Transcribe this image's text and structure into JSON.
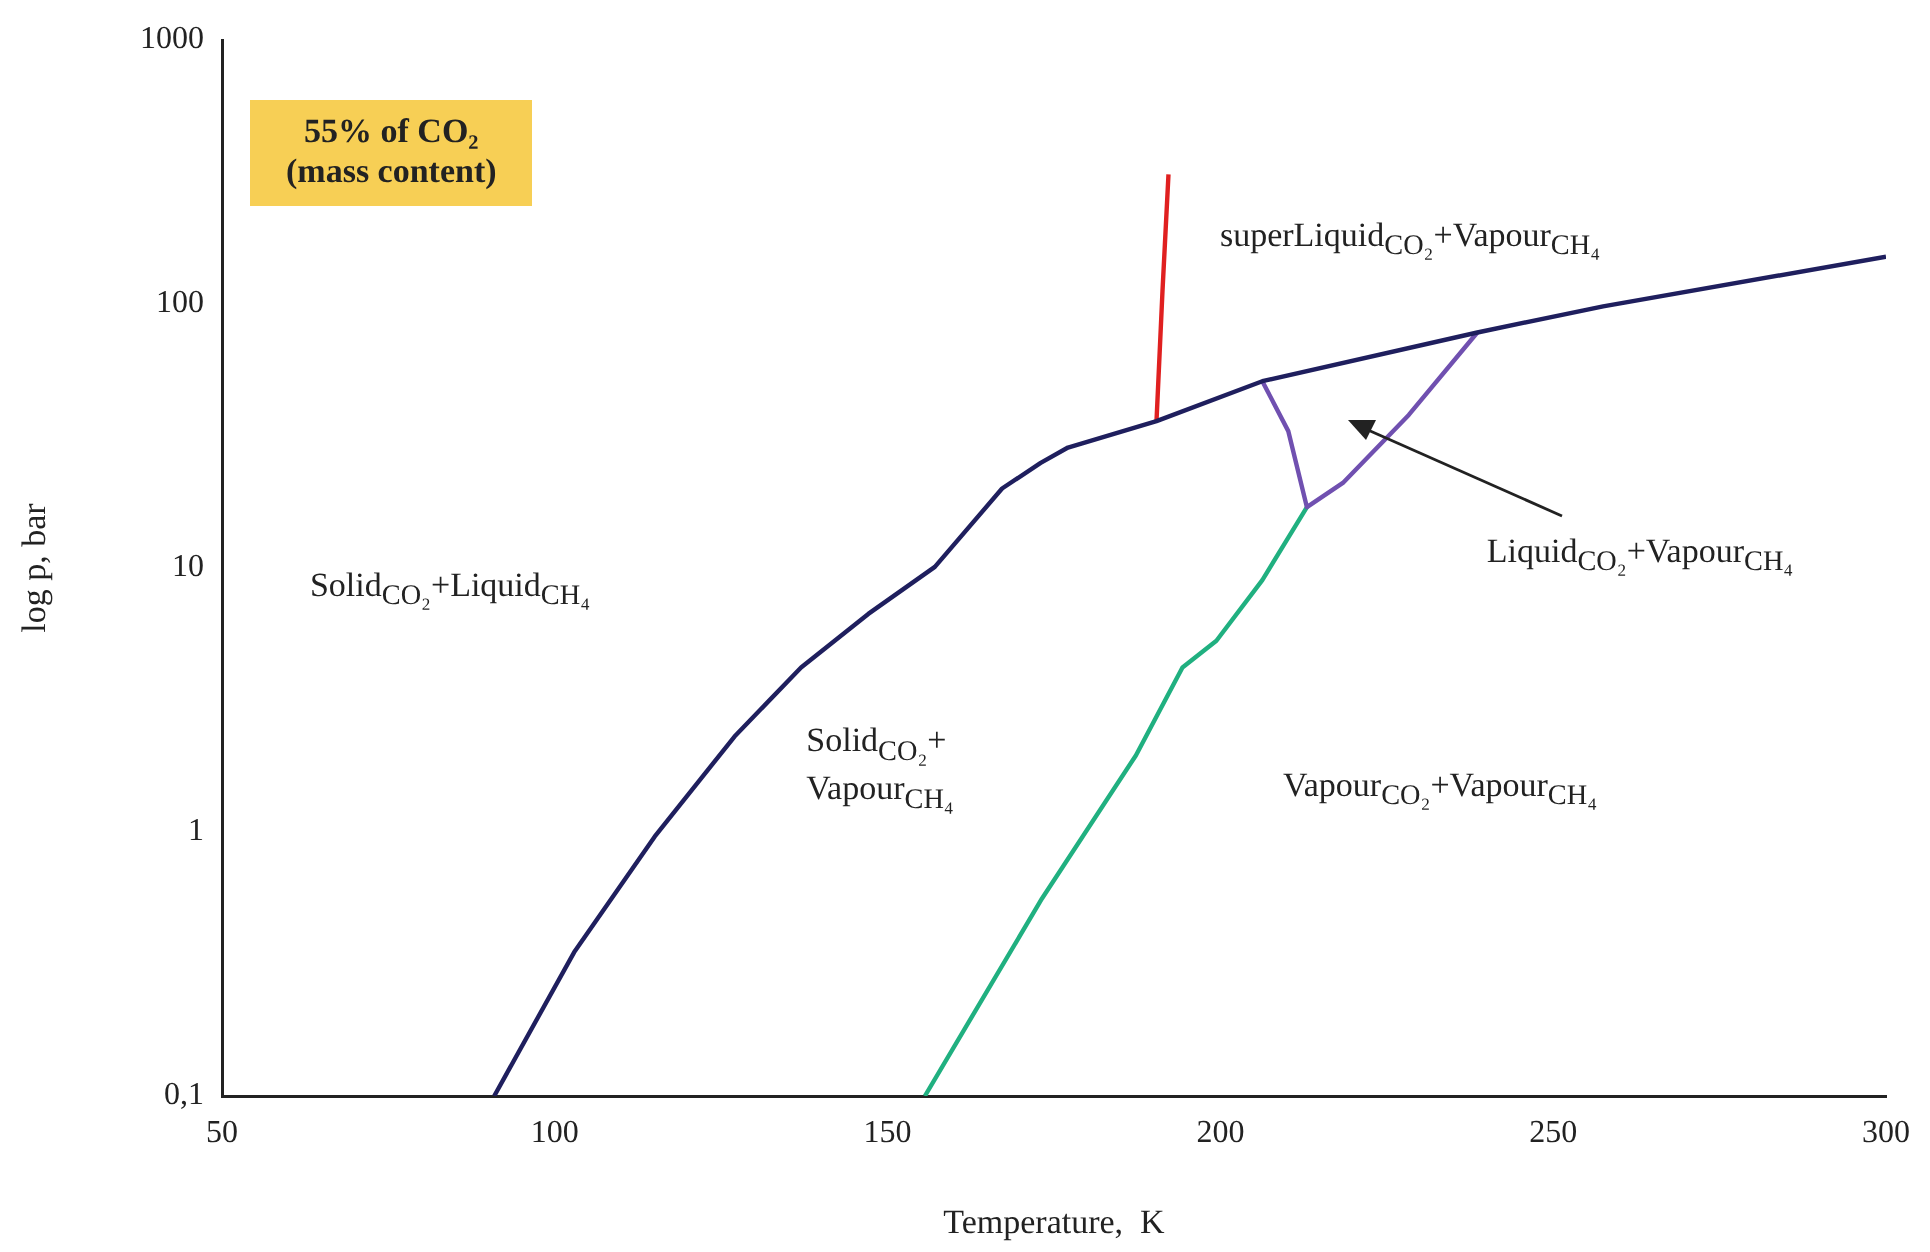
{
  "chart_data": {
    "type": "line",
    "xlabel": "Temperature,  K",
    "ylabel": "log p, bar",
    "log": "y",
    "grid": false,
    "legend": false,
    "xlim": [
      50,
      300
    ],
    "xticks": [
      50,
      100,
      150,
      200,
      250,
      300
    ],
    "ylim": [
      0.1,
      1000
    ],
    "yticks": [
      {
        "value": 0.1,
        "label": "0,1"
      },
      1,
      10,
      100,
      1000
    ],
    "series": [
      {
        "color": "#1f1f5e",
        "x": [
          90.9,
          102.9,
          115,
          127,
          137,
          147.1,
          157.1,
          167.2,
          173,
          177.1,
          190.4,
          206.3,
          238.6,
          257.5,
          300
        ],
        "values": [
          0.1,
          0.35,
          0.96,
          2.3,
          4.2,
          6.7,
          10.1,
          20,
          25,
          28.6,
          36,
          51,
          78,
          98,
          151
        ]
      },
      {
        "color": "#e02020",
        "x": [
          190.4,
          191.3,
          192.2
        ],
        "values": [
          36,
          112,
          310
        ]
      },
      {
        "color": "#7050b0",
        "x": [
          206.3,
          210.2,
          213,
          218.4,
          228.3,
          238.6
        ],
        "values": [
          51,
          33,
          17,
          21,
          38,
          78
        ]
      },
      {
        "color": "#20b080",
        "x": [
          155.6,
          173.2,
          187.3,
          194.3,
          199.4,
          206.3,
          213
        ],
        "values": [
          0.1,
          0.56,
          1.95,
          4.2,
          5.3,
          9,
          17
        ]
      }
    ],
    "annotations": [
      "55% of CO₂\n(mass content)",
      "superLiquid$_{CO₂}$+Vapour$_{CH₄}$",
      "Liquid$_{CO₂}$+Vapour$_{CH₄}$",
      "Solid$_{CO₂}$+Liquid$_{CH₄}$",
      "Solid$_{CO₂}$+\nVapour$_{CH₄}$",
      "Vapour$_{CO₂}$+Vapour$_{CH₄}$"
    ]
  }
}
